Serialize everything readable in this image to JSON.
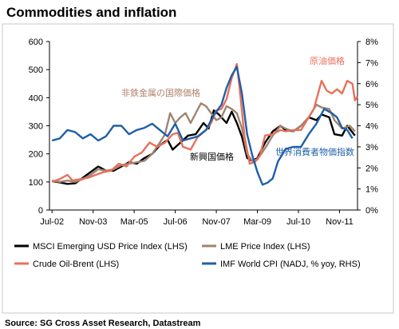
{
  "page": {
    "title": "Commodities and inflation",
    "source": "Source: SG Cross Asset Research, Datastream"
  },
  "chart_data": {
    "type": "line",
    "title": "Commodities and inflation",
    "grid": false,
    "legend_placement": "bottom",
    "x_tick_labels": [
      "Jul-02",
      "Nov-03",
      "Mar-05",
      "Jul-06",
      "Nov-07",
      "Mar-09",
      "Jul-10",
      "Nov-11"
    ],
    "x_range": [
      "2002-06",
      "2012-06"
    ],
    "y_left": {
      "range": [
        0,
        600
      ],
      "ticks": [
        0,
        100,
        200,
        300,
        400,
        500,
        600
      ],
      "label": ""
    },
    "y_right": {
      "range": [
        0,
        8
      ],
      "ticks": [
        "0%",
        "1%",
        "2%",
        "3%",
        "4%",
        "5%",
        "6%",
        "7%",
        "8%"
      ],
      "label": ""
    },
    "annotations": [
      {
        "text": "非鉄金属の国際価格",
        "color": "#b07f6a",
        "series": "LME Price Index (LHS)"
      },
      {
        "text": "原油価格",
        "color": "#e8705a",
        "series": "Crude Oil-Brent (LHS)"
      },
      {
        "text": "新興国価格",
        "color": "#000000",
        "series": "MSCI Emerging USD Price Index (LHS)"
      },
      {
        "text": "世界消費者物価指数",
        "color": "#1f5fa8",
        "series": "IMF World CPI (NADJ, % yoy, RHS)"
      }
    ],
    "series": [
      {
        "name": "MSCI Emerging USD Price Index (LHS)",
        "axis": "left",
        "color": "#000000",
        "points": [
          [
            "2002-07",
            103
          ],
          [
            "2002-10",
            98
          ],
          [
            "2003-01",
            93
          ],
          [
            "2003-04",
            95
          ],
          [
            "2003-07",
            115
          ],
          [
            "2003-10",
            135
          ],
          [
            "2004-01",
            155
          ],
          [
            "2004-04",
            140
          ],
          [
            "2004-07",
            140
          ],
          [
            "2004-10",
            155
          ],
          [
            "2005-01",
            170
          ],
          [
            "2005-04",
            165
          ],
          [
            "2005-07",
            185
          ],
          [
            "2005-10",
            200
          ],
          [
            "2006-01",
            230
          ],
          [
            "2006-04",
            250
          ],
          [
            "2006-06",
            215
          ],
          [
            "2006-09",
            240
          ],
          [
            "2006-12",
            265
          ],
          [
            "2007-03",
            270
          ],
          [
            "2007-06",
            310
          ],
          [
            "2007-08",
            290
          ],
          [
            "2007-10",
            355
          ],
          [
            "2007-12",
            340
          ],
          [
            "2008-03",
            310
          ],
          [
            "2008-05",
            350
          ],
          [
            "2008-07",
            310
          ],
          [
            "2008-09",
            260
          ],
          [
            "2008-11",
            185
          ],
          [
            "2009-01",
            175
          ],
          [
            "2009-03",
            185
          ],
          [
            "2009-06",
            240
          ],
          [
            "2009-09",
            280
          ],
          [
            "2009-12",
            300
          ],
          [
            "2010-02",
            285
          ],
          [
            "2010-05",
            280
          ],
          [
            "2010-08",
            300
          ],
          [
            "2010-11",
            330
          ],
          [
            "2011-02",
            320
          ],
          [
            "2011-04",
            340
          ],
          [
            "2011-07",
            330
          ],
          [
            "2011-09",
            270
          ],
          [
            "2011-12",
            265
          ],
          [
            "2012-02",
            300
          ],
          [
            "2012-05",
            265
          ]
        ]
      },
      {
        "name": "LME Price Index (LHS)",
        "axis": "left",
        "color": "#a08470",
        "points": [
          [
            "2002-07",
            105
          ],
          [
            "2002-10",
            100
          ],
          [
            "2003-01",
            105
          ],
          [
            "2003-04",
            100
          ],
          [
            "2003-07",
            110
          ],
          [
            "2003-10",
            125
          ],
          [
            "2004-01",
            145
          ],
          [
            "2004-04",
            140
          ],
          [
            "2004-07",
            145
          ],
          [
            "2004-10",
            160
          ],
          [
            "2005-01",
            165
          ],
          [
            "2005-04",
            170
          ],
          [
            "2005-07",
            175
          ],
          [
            "2005-10",
            200
          ],
          [
            "2006-01",
            240
          ],
          [
            "2006-03",
            270
          ],
          [
            "2006-05",
            345
          ],
          [
            "2006-07",
            310
          ],
          [
            "2006-09",
            330
          ],
          [
            "2006-11",
            345
          ],
          [
            "2007-01",
            310
          ],
          [
            "2007-03",
            345
          ],
          [
            "2007-05",
            380
          ],
          [
            "2007-07",
            370
          ],
          [
            "2007-09",
            345
          ],
          [
            "2007-11",
            320
          ],
          [
            "2008-01",
            330
          ],
          [
            "2008-03",
            370
          ],
          [
            "2008-05",
            360
          ],
          [
            "2008-07",
            345
          ],
          [
            "2008-09",
            290
          ],
          [
            "2008-11",
            200
          ],
          [
            "2009-01",
            175
          ],
          [
            "2009-03",
            180
          ],
          [
            "2009-06",
            220
          ],
          [
            "2009-09",
            265
          ],
          [
            "2009-12",
            300
          ],
          [
            "2010-02",
            290
          ],
          [
            "2010-05",
            280
          ],
          [
            "2010-08",
            300
          ],
          [
            "2010-11",
            330
          ],
          [
            "2011-02",
            375
          ],
          [
            "2011-04",
            365
          ],
          [
            "2011-07",
            360
          ],
          [
            "2011-09",
            320
          ],
          [
            "2011-12",
            290
          ],
          [
            "2012-03",
            300
          ],
          [
            "2012-05",
            280
          ]
        ]
      },
      {
        "name": "Crude Oil-Brent (LHS)",
        "axis": "left",
        "color": "#e8705a",
        "points": [
          [
            "2002-07",
            100
          ],
          [
            "2002-10",
            110
          ],
          [
            "2003-01",
            125
          ],
          [
            "2003-03",
            105
          ],
          [
            "2003-06",
            110
          ],
          [
            "2003-09",
            115
          ],
          [
            "2003-12",
            125
          ],
          [
            "2004-03",
            135
          ],
          [
            "2004-06",
            140
          ],
          [
            "2004-09",
            165
          ],
          [
            "2004-12",
            155
          ],
          [
            "2005-03",
            190
          ],
          [
            "2005-06",
            205
          ],
          [
            "2005-09",
            240
          ],
          [
            "2005-12",
            225
          ],
          [
            "2006-03",
            240
          ],
          [
            "2006-06",
            270
          ],
          [
            "2006-08",
            275
          ],
          [
            "2006-10",
            225
          ],
          [
            "2007-01",
            215
          ],
          [
            "2007-04",
            265
          ],
          [
            "2007-07",
            285
          ],
          [
            "2007-09",
            310
          ],
          [
            "2007-11",
            355
          ],
          [
            "2008-01",
            360
          ],
          [
            "2008-03",
            395
          ],
          [
            "2008-05",
            470
          ],
          [
            "2008-07",
            520
          ],
          [
            "2008-08",
            440
          ],
          [
            "2008-10",
            260
          ],
          [
            "2008-12",
            165
          ],
          [
            "2009-02",
            170
          ],
          [
            "2009-04",
            195
          ],
          [
            "2009-06",
            265
          ],
          [
            "2009-09",
            270
          ],
          [
            "2009-12",
            285
          ],
          [
            "2010-02",
            280
          ],
          [
            "2010-05",
            285
          ],
          [
            "2010-08",
            285
          ],
          [
            "2010-11",
            330
          ],
          [
            "2011-01",
            360
          ],
          [
            "2011-04",
            460
          ],
          [
            "2011-06",
            425
          ],
          [
            "2011-08",
            415
          ],
          [
            "2011-10",
            430
          ],
          [
            "2011-12",
            415
          ],
          [
            "2012-02",
            460
          ],
          [
            "2012-04",
            450
          ],
          [
            "2012-05",
            390
          ],
          [
            "2012-06",
            405
          ]
        ]
      },
      {
        "name": "IMF World CPI (NADJ, % yoy, RHS)",
        "axis": "right",
        "color": "#1f5fa8",
        "points": [
          [
            "2002-07",
            3.3
          ],
          [
            "2002-10",
            3.4
          ],
          [
            "2003-01",
            3.8
          ],
          [
            "2003-04",
            3.7
          ],
          [
            "2003-07",
            3.4
          ],
          [
            "2003-10",
            3.6
          ],
          [
            "2004-01",
            3.3
          ],
          [
            "2004-04",
            3.5
          ],
          [
            "2004-07",
            4.0
          ],
          [
            "2004-10",
            4.0
          ],
          [
            "2005-01",
            3.6
          ],
          [
            "2005-04",
            3.8
          ],
          [
            "2005-07",
            3.9
          ],
          [
            "2005-10",
            4.1
          ],
          [
            "2006-01",
            3.8
          ],
          [
            "2006-04",
            3.5
          ],
          [
            "2006-07",
            4.1
          ],
          [
            "2006-10",
            3.3
          ],
          [
            "2007-01",
            3.4
          ],
          [
            "2007-04",
            3.5
          ],
          [
            "2007-07",
            3.8
          ],
          [
            "2007-10",
            4.5
          ],
          [
            "2008-01",
            5.0
          ],
          [
            "2008-03",
            5.8
          ],
          [
            "2008-05",
            6.4
          ],
          [
            "2008-07",
            6.8
          ],
          [
            "2008-09",
            5.5
          ],
          [
            "2008-11",
            3.6
          ],
          [
            "2009-01",
            2.6
          ],
          [
            "2009-03",
            1.8
          ],
          [
            "2009-05",
            1.2
          ],
          [
            "2009-07",
            1.3
          ],
          [
            "2009-09",
            1.5
          ],
          [
            "2009-11",
            2.3
          ],
          [
            "2010-02",
            2.9
          ],
          [
            "2010-05",
            3.0
          ],
          [
            "2010-08",
            3.0
          ],
          [
            "2010-11",
            3.6
          ],
          [
            "2011-02",
            4.1
          ],
          [
            "2011-05",
            4.8
          ],
          [
            "2011-08",
            4.6
          ],
          [
            "2011-10",
            4.4
          ],
          [
            "2011-12",
            3.9
          ],
          [
            "2012-02",
            3.8
          ],
          [
            "2012-04",
            3.4
          ]
        ]
      }
    ]
  }
}
